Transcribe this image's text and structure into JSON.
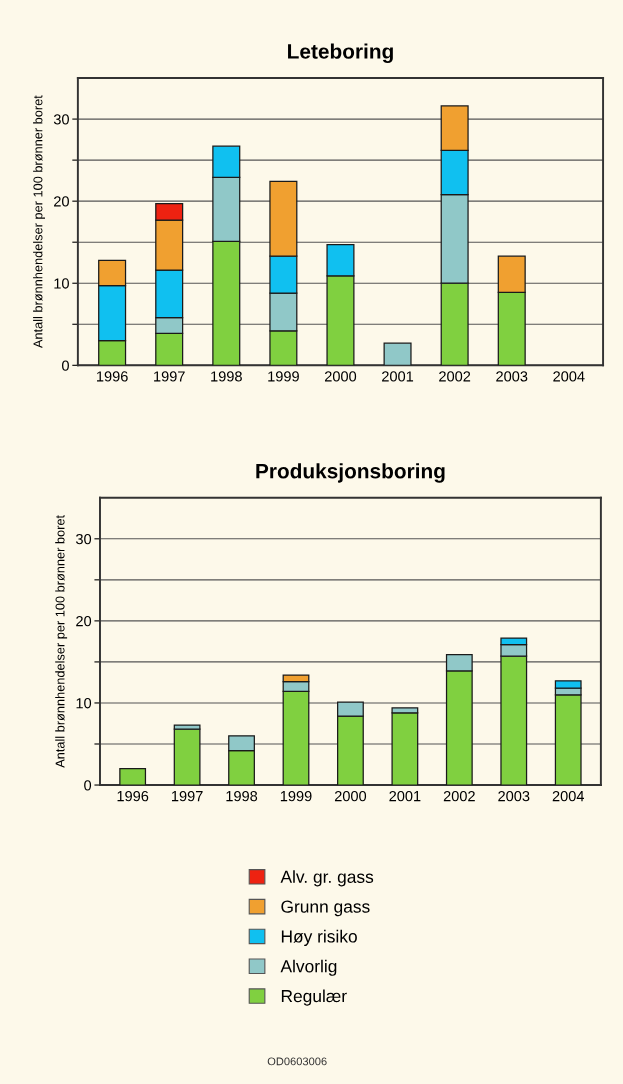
{
  "chart_data": [
    {
      "type": "bar",
      "title": "Leteboring",
      "ylabel": "Antall brønnhendelser per 100 brønner boret",
      "stacked": true,
      "categories": [
        "1996",
        "1997",
        "1998",
        "1999",
        "2000",
        "2001",
        "2002",
        "2003",
        "2004"
      ],
      "series": [
        {
          "name": "Regulær",
          "color": "#80d040",
          "values": [
            3.0,
            3.9,
            15.1,
            4.2,
            10.9,
            null,
            10.0,
            8.9,
            null
          ]
        },
        {
          "name": "Alvorlig",
          "color": "#90c8c8",
          "values": [
            null,
            1.9,
            7.8,
            4.6,
            null,
            2.7,
            10.8,
            null,
            null
          ]
        },
        {
          "name": "Høy risiko",
          "color": "#10c0f0",
          "values": [
            6.7,
            5.8,
            3.8,
            4.5,
            3.8,
            null,
            5.4,
            null,
            null
          ]
        },
        {
          "name": "Grunn gass",
          "color": "#f0a030",
          "values": [
            3.1,
            6.1,
            null,
            9.1,
            null,
            null,
            5.4,
            4.4,
            null
          ]
        },
        {
          "name": "Alv. gr. gass",
          "color": "#ee2211",
          "values": [
            null,
            2.0,
            null,
            null,
            null,
            null,
            null,
            null,
            null
          ]
        }
      ],
      "ylim": [
        0,
        35
      ],
      "yticks": [
        0,
        {
          "value": 5,
          "label": null
        },
        10,
        {
          "value": 15,
          "label": null
        },
        20,
        {
          "value": 25,
          "label": null
        },
        30
      ],
      "grid": "y",
      "legend": "bottom"
    },
    {
      "type": "bar",
      "title": "Produksjonsboring",
      "ylabel": "Antall brønnhendelser per 100 brønner boret",
      "stacked": true,
      "categories": [
        "1996",
        "1997",
        "1998",
        "1999",
        "2000",
        "2001",
        "2002",
        "2003",
        "2004"
      ],
      "series": [
        {
          "color": "#80d040",
          "values": [
            2.0,
            6.8,
            4.2,
            11.4,
            8.4,
            8.8,
            13.9,
            15.7,
            11.0
          ]
        },
        {
          "color": "#90c8c8",
          "values": [
            null,
            0.5,
            1.8,
            1.2,
            1.7,
            0.6,
            2.0,
            1.4,
            0.8
          ]
        },
        {
          "color": "#10c0f0",
          "values": [
            null,
            null,
            null,
            null,
            null,
            null,
            null,
            0.8,
            0.9
          ]
        },
        {
          "color": "#f0a030",
          "values": [
            null,
            null,
            null,
            0.8,
            null,
            null,
            null,
            null,
            null
          ]
        }
      ],
      "ylim": [
        0,
        35
      ],
      "yticks": [
        0,
        {
          "value": 5,
          "label": null
        },
        10,
        {
          "value": 15,
          "label": null
        },
        20,
        {
          "value": 25,
          "label": null
        },
        30
      ],
      "grid": "y",
      "annotations": [
        "OD0603006"
      ]
    }
  ]
}
